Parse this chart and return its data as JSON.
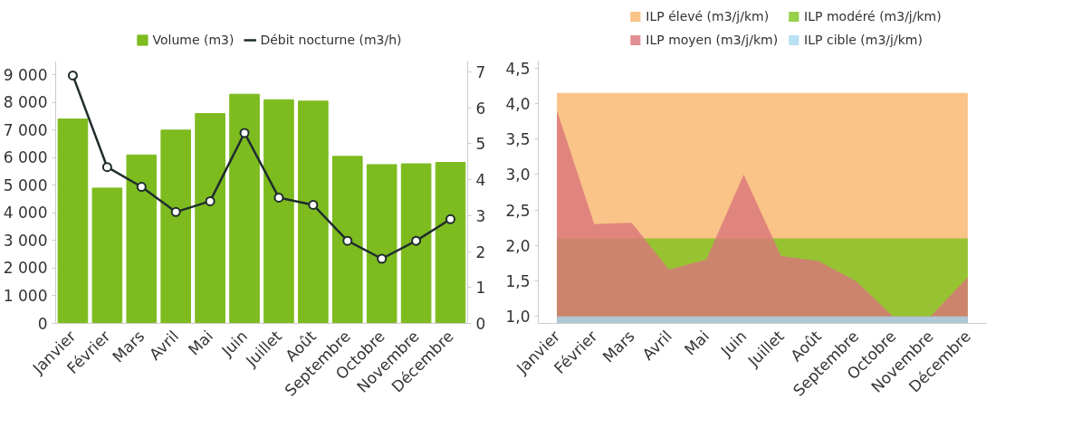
{
  "chart_data": [
    {
      "type": "bar",
      "categories": [
        "Janvier",
        "Février",
        "Mars",
        "Avril",
        "Mai",
        "Juin",
        "Juillet",
        "Août",
        "Septembre",
        "Octobre",
        "Novembre",
        "Décembre"
      ],
      "series": [
        {
          "name": "Volume (m3)",
          "type": "bar",
          "color": "#7dbb1f",
          "values": [
            7400,
            4900,
            6100,
            7000,
            7600,
            8300,
            8100,
            8050,
            6050,
            5750,
            5780,
            5830
          ]
        },
        {
          "name": "Débit nocturne (m3/h)",
          "type": "line",
          "axis": "y2",
          "color": "#1f2d2d",
          "marker": "circle",
          "values": [
            6.9,
            4.35,
            3.8,
            3.1,
            3.4,
            5.3,
            3.5,
            3.3,
            2.3,
            1.8,
            2.3,
            2.9
          ]
        }
      ],
      "ylim": [
        0,
        9500
      ],
      "yticks": [
        {
          "value": 0,
          "label": "0"
        },
        {
          "value": 1000,
          "label": "1 000"
        },
        {
          "value": 2000,
          "label": "2 000"
        },
        {
          "value": 3000,
          "label": "3 000"
        },
        {
          "value": 4000,
          "label": "4 000"
        },
        {
          "value": 5000,
          "label": "5 000"
        },
        {
          "value": 6000,
          "label": "6 000"
        },
        {
          "value": 7000,
          "label": "7 000"
        },
        {
          "value": 8000,
          "label": "8 000"
        },
        {
          "value": 9000,
          "label": "9 000"
        }
      ],
      "y2lim": [
        0,
        7.3
      ],
      "y2ticks": [
        0,
        1,
        2,
        3,
        4,
        5,
        6,
        7
      ],
      "grid": false,
      "legend": "top"
    },
    {
      "type": "area",
      "categories": [
        "Janvier",
        "Février",
        "Mars",
        "Avril",
        "Mai",
        "Juin",
        "Juillet",
        "Août",
        "Septembre",
        "Octobre",
        "Novembre",
        "Décembre"
      ],
      "series": [
        {
          "name": "ILP élevé (m3/j/km)",
          "color": "#f9b469",
          "values": [
            4.15,
            4.15,
            4.15,
            4.15,
            4.15,
            4.15,
            4.15,
            4.15,
            4.15,
            4.15,
            4.15,
            4.15
          ]
        },
        {
          "name": "ILP modéré (m3/j/km)",
          "color": "#7ec31e",
          "values": [
            2.1,
            2.1,
            2.1,
            2.1,
            2.1,
            2.1,
            2.1,
            2.1,
            2.1,
            2.1,
            2.1,
            2.1
          ]
        },
        {
          "name": "ILP moyen (m3/j/km)",
          "color": "#d9767a",
          "values": [
            3.9,
            2.3,
            2.32,
            1.66,
            1.8,
            3.0,
            1.85,
            1.78,
            1.5,
            1.0,
            1.0,
            1.55
          ]
        },
        {
          "name": "ILP cible (m3/j/km)",
          "color": "#a8d8f0",
          "values": [
            1.0,
            1.0,
            1.0,
            1.0,
            1.0,
            1.0,
            1.0,
            1.0,
            1.0,
            1.0,
            1.0,
            1.0
          ]
        }
      ],
      "ylim": [
        0.9,
        4.6
      ],
      "yticks": [
        {
          "value": 1.0,
          "label": "1,0"
        },
        {
          "value": 1.5,
          "label": "1,5"
        },
        {
          "value": 2.0,
          "label": "2,0"
        },
        {
          "value": 2.5,
          "label": "2,5"
        },
        {
          "value": 3.0,
          "label": "3,0"
        },
        {
          "value": 3.5,
          "label": "3,5"
        },
        {
          "value": 4.0,
          "label": "4,0"
        },
        {
          "value": 4.5,
          "label": "4,5"
        }
      ],
      "grid": false,
      "legend": "top"
    }
  ]
}
